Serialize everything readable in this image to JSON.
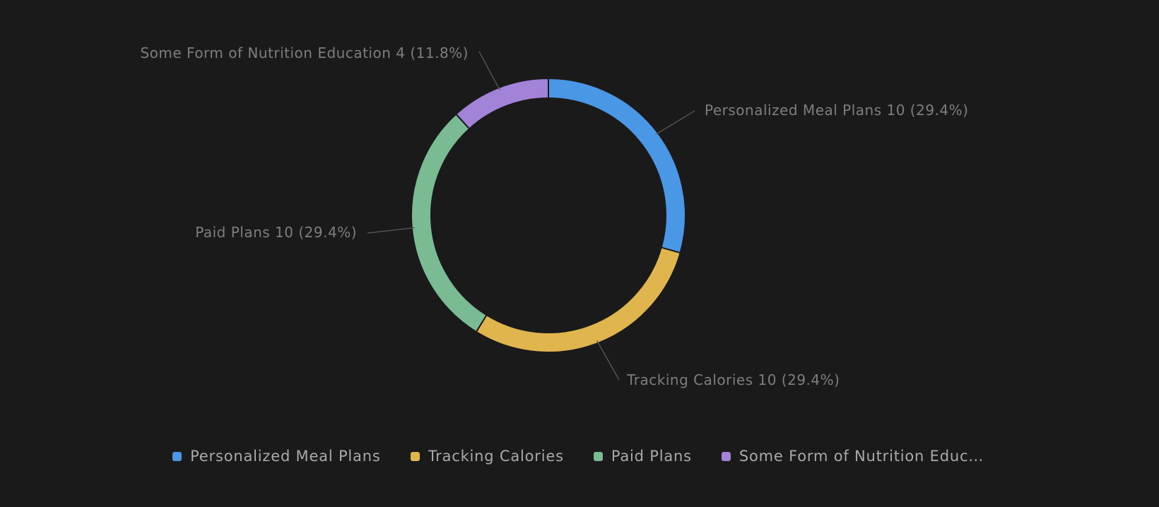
{
  "chart_data": {
    "type": "pie",
    "categories": [
      "Personalized Meal Plans",
      "Tracking Calories",
      "Paid Plans",
      "Some Form of Nutrition Education"
    ],
    "values": [
      10,
      10,
      10,
      4
    ],
    "value_labels": [
      "10 (29.4%)",
      "10 (29.4%)",
      "10 (29.4%)",
      "4 (11.8%)"
    ],
    "colors": [
      "#4a97e6",
      "#e0b54e",
      "#7bbb94",
      "#a283d8"
    ],
    "legend": "bottom"
  }
}
